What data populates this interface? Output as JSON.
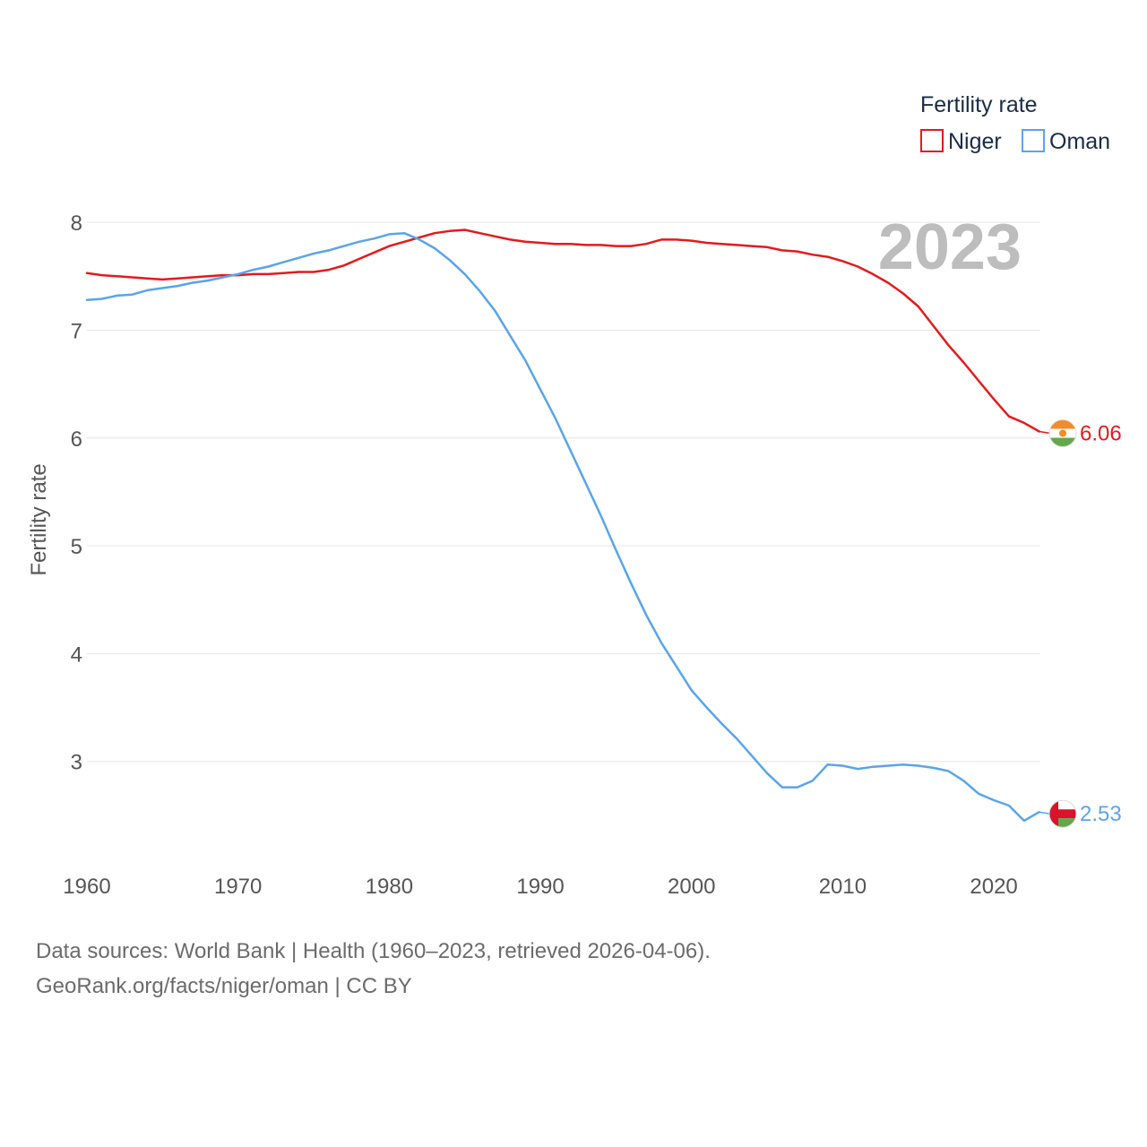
{
  "chart_data": {
    "type": "line",
    "title": "Fertility rate",
    "ylabel": "Fertility rate",
    "xlabel": "",
    "xlim": [
      1960,
      2024.5
    ],
    "ylim": [
      2.0,
      8.4
    ],
    "yticks": [
      3,
      4,
      5,
      6,
      7,
      8
    ],
    "xticks": [
      1960,
      1970,
      1980,
      1990,
      2000,
      2010,
      2020
    ],
    "grid": true,
    "legend_position": "top-right",
    "year_display": "2023",
    "x": [
      1960,
      1961,
      1962,
      1963,
      1964,
      1965,
      1966,
      1967,
      1968,
      1969,
      1970,
      1971,
      1972,
      1973,
      1974,
      1975,
      1976,
      1977,
      1978,
      1979,
      1980,
      1981,
      1982,
      1983,
      1984,
      1985,
      1986,
      1987,
      1988,
      1989,
      1990,
      1991,
      1992,
      1993,
      1994,
      1995,
      1996,
      1997,
      1998,
      1999,
      2000,
      2001,
      2002,
      2003,
      2004,
      2005,
      2006,
      2007,
      2008,
      2009,
      2010,
      2011,
      2012,
      2013,
      2014,
      2015,
      2016,
      2017,
      2018,
      2019,
      2020,
      2021,
      2022,
      2023
    ],
    "series": [
      {
        "name": "Niger",
        "color": "#e31a1c",
        "flag": "niger-flag-icon",
        "end_label": "6.06",
        "values": [
          7.53,
          7.51,
          7.5,
          7.49,
          7.48,
          7.47,
          7.48,
          7.49,
          7.5,
          7.51,
          7.51,
          7.52,
          7.52,
          7.53,
          7.54,
          7.54,
          7.56,
          7.6,
          7.66,
          7.72,
          7.78,
          7.82,
          7.86,
          7.9,
          7.92,
          7.93,
          7.9,
          7.87,
          7.84,
          7.82,
          7.81,
          7.8,
          7.8,
          7.79,
          7.79,
          7.78,
          7.78,
          7.8,
          7.84,
          7.84,
          7.83,
          7.81,
          7.8,
          7.79,
          7.78,
          7.77,
          7.74,
          7.73,
          7.7,
          7.68,
          7.64,
          7.59,
          7.52,
          7.44,
          7.34,
          7.22,
          7.04,
          6.86,
          6.7,
          6.53,
          6.36,
          6.2,
          6.14,
          6.06
        ]
      },
      {
        "name": "Oman",
        "color": "#5aa4ea",
        "flag": "oman-flag-icon",
        "end_label": "2.53",
        "values": [
          7.28,
          7.29,
          7.32,
          7.33,
          7.37,
          7.39,
          7.41,
          7.44,
          7.46,
          7.49,
          7.52,
          7.56,
          7.59,
          7.63,
          7.67,
          7.71,
          7.74,
          7.78,
          7.82,
          7.85,
          7.89,
          7.9,
          7.84,
          7.76,
          7.65,
          7.52,
          7.36,
          7.18,
          6.95,
          6.72,
          6.45,
          6.18,
          5.88,
          5.58,
          5.28,
          4.96,
          4.65,
          4.36,
          4.1,
          3.88,
          3.66,
          3.5,
          3.35,
          3.21,
          3.05,
          2.89,
          2.76,
          2.76,
          2.82,
          2.97,
          2.96,
          2.93,
          2.95,
          2.96,
          2.97,
          2.96,
          2.94,
          2.91,
          2.82,
          2.7,
          2.64,
          2.59,
          2.45,
          2.53
        ]
      }
    ]
  },
  "legend": {
    "title": "Fertility rate",
    "items": [
      {
        "label": "Niger",
        "color": "#e31a1c"
      },
      {
        "label": "Oman",
        "color": "#5aa4ea"
      }
    ]
  },
  "footer": {
    "line1": "Data sources: World Bank | Health (1960–2023, retrieved 2026-04-06).",
    "line2": "GeoRank.org/facts/niger/oman | CC BY"
  }
}
